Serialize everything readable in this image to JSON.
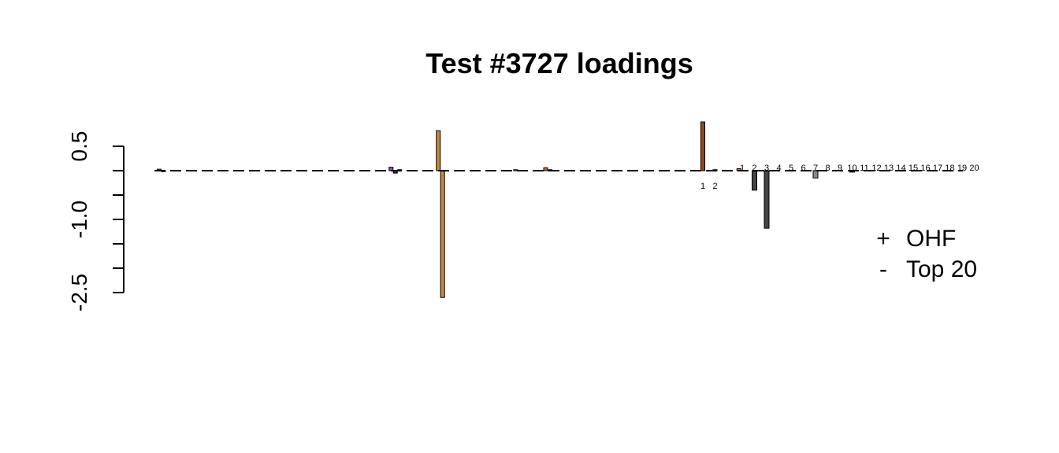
{
  "chart_data": {
    "type": "bar",
    "title": "Test #3727 loadings",
    "xlabel": "",
    "ylabel": "",
    "ylim": [
      -2.5,
      1.0
    ],
    "yticks": [
      "0.5",
      "-1.0",
      "-2.5"
    ],
    "ytick_values": [
      0.5,
      -1.0,
      -2.5
    ],
    "baseline_style": "dashed",
    "legend": {
      "placement": "right",
      "items": [
        {
          "symbol": "+",
          "label": "OHF"
        },
        {
          "symbol": "-",
          "label": "Top 20"
        }
      ]
    },
    "groups": [
      {
        "name": "",
        "values": [
          0.03,
          -0.02,
          0,
          0,
          0,
          0,
          0,
          0,
          0,
          0,
          0,
          0,
          0,
          0,
          0,
          0,
          0,
          0,
          0,
          0,
          0,
          0,
          0,
          0,
          0,
          0,
          0,
          0,
          0,
          0,
          0,
          0,
          0,
          0,
          0,
          0,
          0,
          0,
          0,
          0,
          0,
          0,
          0,
          0,
          0,
          0,
          0,
          0,
          0,
          0,
          0,
          0,
          0,
          0,
          0.07,
          -0.05,
          0.02,
          0,
          0,
          0,
          0,
          0,
          0,
          0,
          0,
          0.82,
          -2.6,
          0,
          0,
          0,
          0,
          0,
          0,
          0,
          0,
          0,
          0,
          0,
          0,
          0,
          0,
          0,
          0,
          0.02,
          0,
          0,
          0,
          0,
          0,
          0,
          0.06,
          0.02,
          0,
          0,
          0,
          0,
          0,
          0,
          0,
          0,
          0,
          0,
          0,
          0,
          0,
          0,
          0,
          0,
          0,
          0,
          0,
          0,
          0,
          0,
          0,
          0,
          0,
          0,
          0,
          0,
          0,
          0,
          0,
          0,
          0,
          0,
          0,
          0,
          0,
          0,
          0,
          0,
          0,
          0,
          0,
          0.04,
          0
        ],
        "colors": [
          "#b8783a",
          "#3d2a6a",
          "#b8783a",
          "#b8783a",
          "#b8783a",
          "#b8783a",
          "#b8783a",
          "#b8783a",
          "#b8783a",
          "#b8783a",
          "#b8783a",
          "#b8783a",
          "#b8783a",
          "#b8783a",
          "#b8783a",
          "#b8783a",
          "#b8783a",
          "#b8783a",
          "#b8783a",
          "#b8783a",
          "#b8783a",
          "#b8783a",
          "#b8783a",
          "#b8783a",
          "#b8783a",
          "#b8783a",
          "#b8783a",
          "#b8783a",
          "#b8783a",
          "#b8783a",
          "#b8783a",
          "#b8783a",
          "#b8783a",
          "#b8783a",
          "#b8783a",
          "#b8783a",
          "#b8783a",
          "#b8783a",
          "#b8783a",
          "#b8783a",
          "#b8783a",
          "#b8783a",
          "#b8783a",
          "#b8783a",
          "#b8783a",
          "#b8783a",
          "#b8783a",
          "#b8783a",
          "#b8783a",
          "#b8783a",
          "#b8783a",
          "#b8783a",
          "#b8783a",
          "#b8783a",
          "#8a5aa0",
          "#3d2a6a",
          "#b8783a",
          "#b8783a",
          "#b8783a",
          "#b8783a",
          "#b8783a",
          "#b8783a",
          "#b8783a",
          "#b8783a",
          "#b8783a",
          "#c68a45",
          "#c68a45",
          "#b8783a",
          "#b8783a",
          "#b8783a",
          "#b8783a",
          "#b8783a",
          "#b8783a",
          "#b8783a",
          "#b8783a",
          "#b8783a",
          "#b8783a",
          "#b8783a",
          "#b8783a",
          "#b8783a",
          "#b8783a",
          "#b8783a",
          "#b8783a",
          "#b8783a",
          "#b8783a",
          "#b8783a",
          "#b8783a",
          "#b8783a",
          "#b8783a",
          "#b8783a",
          "#b8783a",
          "#b8783a",
          "#b8783a",
          "#b8783a",
          "#b8783a",
          "#b8783a",
          "#b8783a",
          "#b8783a",
          "#b8783a",
          "#b8783a",
          "#b8783a",
          "#b8783a",
          "#b8783a",
          "#b8783a",
          "#b8783a",
          "#b8783a",
          "#b8783a",
          "#b8783a",
          "#b8783a",
          "#b8783a",
          "#b8783a",
          "#b8783a",
          "#b8783a",
          "#b8783a",
          "#b8783a",
          "#b8783a",
          "#b8783a",
          "#b8783a",
          "#b8783a",
          "#b8783a",
          "#b8783a",
          "#b8783a",
          "#b8783a",
          "#b8783a",
          "#b8783a",
          "#b8783a",
          "#b8783a",
          "#b8783a",
          "#b8783a",
          "#b8783a",
          "#b8783a",
          "#b8783a",
          "#b8783a",
          "#b8783a",
          "#b8783a",
          "#b8783a",
          "#b8783a"
        ],
        "labels": []
      },
      {
        "name": "OHF",
        "values": [
          1.0,
          0.02
        ],
        "colors": [
          "#8b4a1e",
          "#444444"
        ],
        "labels": [
          "1",
          "2"
        ]
      },
      {
        "name": "Top 20",
        "values": [
          0,
          -0.4,
          -1.18,
          0,
          0,
          0,
          -0.15,
          0,
          0,
          -0.03,
          0,
          0,
          0,
          0,
          0,
          0,
          0,
          0,
          0,
          0
        ],
        "colors": [
          "#444444",
          "#444444",
          "#444444",
          "#444444",
          "#444444",
          "#444444",
          "#888888",
          "#444444",
          "#444444",
          "#444444",
          "#444444",
          "#444444",
          "#444444",
          "#444444",
          "#444444",
          "#444444",
          "#444444",
          "#444444",
          "#444444",
          "#444444"
        ],
        "labels": [
          "1",
          "2",
          "3",
          "4",
          "5",
          "6",
          "7",
          "8",
          "9",
          "10",
          "11",
          "12",
          "13",
          "14",
          "15",
          "16",
          "17",
          "18",
          "19",
          "20"
        ]
      }
    ]
  }
}
